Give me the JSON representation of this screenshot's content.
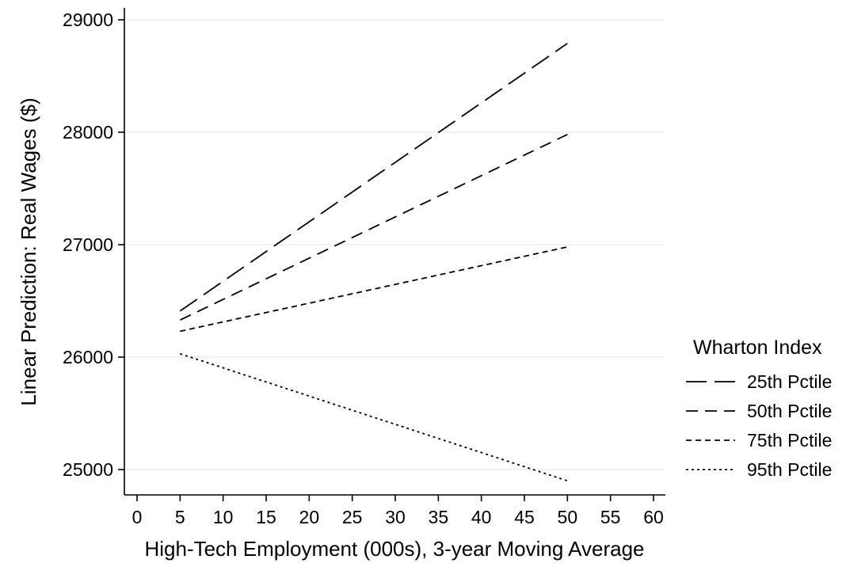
{
  "chart_data": {
    "type": "line",
    "title": "",
    "xlabel": "High-Tech Employment (000s), 3-year Moving Average",
    "ylabel": "Linear Prediction: Real Wages ($)",
    "xlim": [
      0,
      60
    ],
    "ylim": [
      24800,
      29100
    ],
    "xticks": [
      0,
      5,
      10,
      15,
      20,
      25,
      30,
      35,
      40,
      45,
      50,
      55,
      60
    ],
    "yticks": [
      25000,
      26000,
      27000,
      28000,
      29000
    ],
    "grid": "horizontal",
    "legend_title": "Wharton Index",
    "legend_position": "right",
    "colors": {
      "line": "#000000",
      "grid": "#e6e6e6",
      "axis": "#000000"
    },
    "series": [
      {
        "name": "25th Pctile",
        "dash": "long-dash",
        "x": [
          5,
          50
        ],
        "y": [
          26410,
          28790
        ]
      },
      {
        "name": "50th Pctile",
        "dash": "dash",
        "x": [
          5,
          50
        ],
        "y": [
          26330,
          27980
        ]
      },
      {
        "name": "75th Pctile",
        "dash": "short-dash",
        "x": [
          5,
          50
        ],
        "y": [
          26230,
          26980
        ]
      },
      {
        "name": "95th Pctile",
        "dash": "dot",
        "x": [
          5,
          50
        ],
        "y": [
          26030,
          24900
        ]
      }
    ]
  }
}
